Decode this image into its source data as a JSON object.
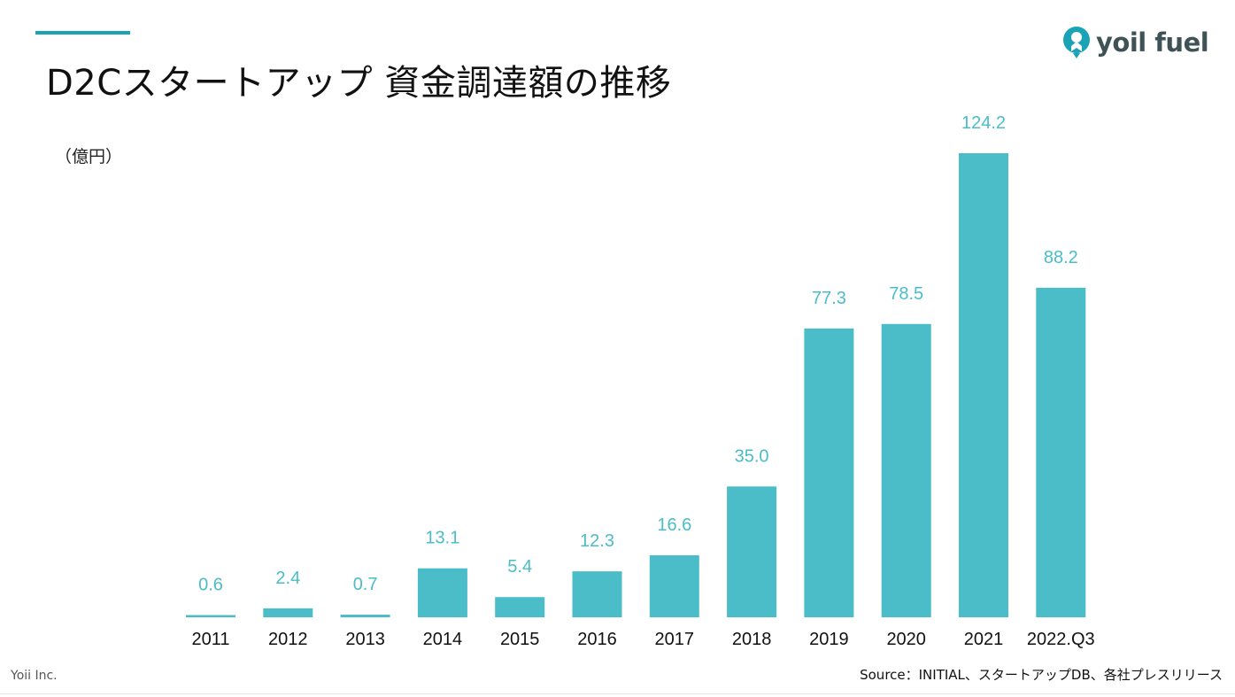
{
  "header": {
    "title": "D2Cスタートアップ 資金調達額の推移",
    "unit": "（億円）"
  },
  "logo": {
    "text": "yoil fuel",
    "icon": "yoil-fuel-logo-icon",
    "color": "#3f5256",
    "mark_color": "#19a3b4"
  },
  "footer": {
    "company": "Yoii Inc.",
    "source": "Source：INITIAL、スタートアップDB、各社プレスリリース"
  },
  "colors": {
    "accent": "#19a3b4",
    "bar": "#4abdc8",
    "label": "#4abdc8",
    "tick": "#111111"
  },
  "chart_data": {
    "type": "bar",
    "title": "D2Cスタートアップ 資金調達額の推移",
    "xlabel": "",
    "ylabel": "（億円）",
    "categories": [
      "2011",
      "2012",
      "2013",
      "2014",
      "2015",
      "2016",
      "2017",
      "2018",
      "2019",
      "2020",
      "2021",
      "2022.Q3"
    ],
    "values": [
      0.6,
      2.4,
      0.7,
      13.1,
      5.4,
      12.3,
      16.6,
      35.0,
      77.3,
      78.5,
      124.2,
      88.2
    ],
    "value_labels": [
      "0.6",
      "2.4",
      "0.7",
      "13.1",
      "5.4",
      "12.3",
      "16.6",
      "35.0",
      "77.3",
      "78.5",
      "124.2",
      "88.2"
    ],
    "ylim": [
      0,
      124.2
    ],
    "grid": false,
    "legend": "none"
  }
}
